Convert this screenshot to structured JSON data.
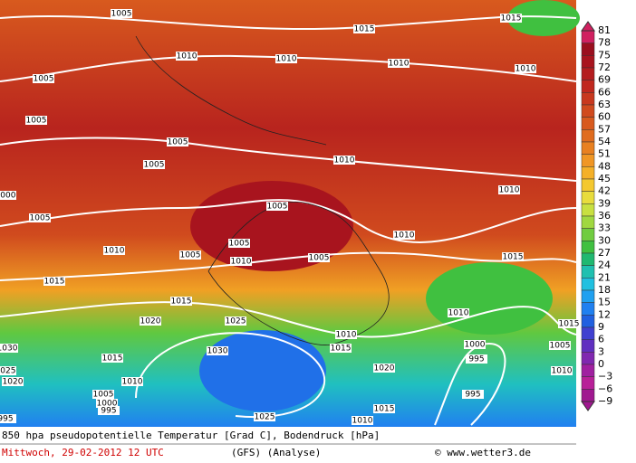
{
  "map": {
    "isobar_labels": [
      "1005",
      "1015",
      "1015",
      "1010",
      "1010",
      "1010",
      "1010",
      "1005",
      "1005",
      "1005",
      "1010",
      "1005",
      "1010",
      "1000",
      "1005",
      "1005",
      "1005",
      "1010",
      "1010",
      "1005",
      "1010",
      "1005",
      "1015",
      "1015",
      "1015",
      "1010",
      "1020",
      "1025",
      "1015",
      "1010",
      "1015",
      "1000",
      "1005",
      "1030",
      "1030",
      "1015",
      "995",
      "1020",
      "1025",
      "1020",
      "1010",
      "995",
      "1005",
      "1000",
      "995",
      "1025",
      "1015",
      "1010",
      "995",
      "1010"
    ]
  },
  "colorbar": {
    "labels": [
      "81",
      "78",
      "75",
      "72",
      "69",
      "66",
      "63",
      "60",
      "57",
      "54",
      "51",
      "48",
      "45",
      "42",
      "39",
      "36",
      "33",
      "30",
      "27",
      "24",
      "21",
      "18",
      "15",
      "12",
      "9",
      "6",
      "3",
      "0",
      "−3",
      "−6",
      "−9"
    ],
    "colors": [
      "#d02060",
      "#9a0f1e",
      "#a8141e",
      "#b41c1e",
      "#c0281e",
      "#c8381e",
      "#d04a1e",
      "#d85a1e",
      "#e06c1e",
      "#e88020",
      "#f09624",
      "#f4b028",
      "#f4c830",
      "#e8dc3c",
      "#c8e040",
      "#a0d840",
      "#70cc40",
      "#40c040",
      "#20b870",
      "#20c0b0",
      "#20c0e0",
      "#20a0f0",
      "#2080f0",
      "#2060e0",
      "#4040d0",
      "#6030c0",
      "#8028b0",
      "#a020a0",
      "#b82098",
      "#a01890"
    ]
  },
  "footer": {
    "line1": "850 hpa pseudopotentielle Temperatur [Grad C], Bodendruck [hPa]",
    "date": "Mittwoch, 29-02-2012  12 UTC",
    "model": "(GFS)  (Analyse)",
    "copyright": "© www.wetter3.de"
  }
}
